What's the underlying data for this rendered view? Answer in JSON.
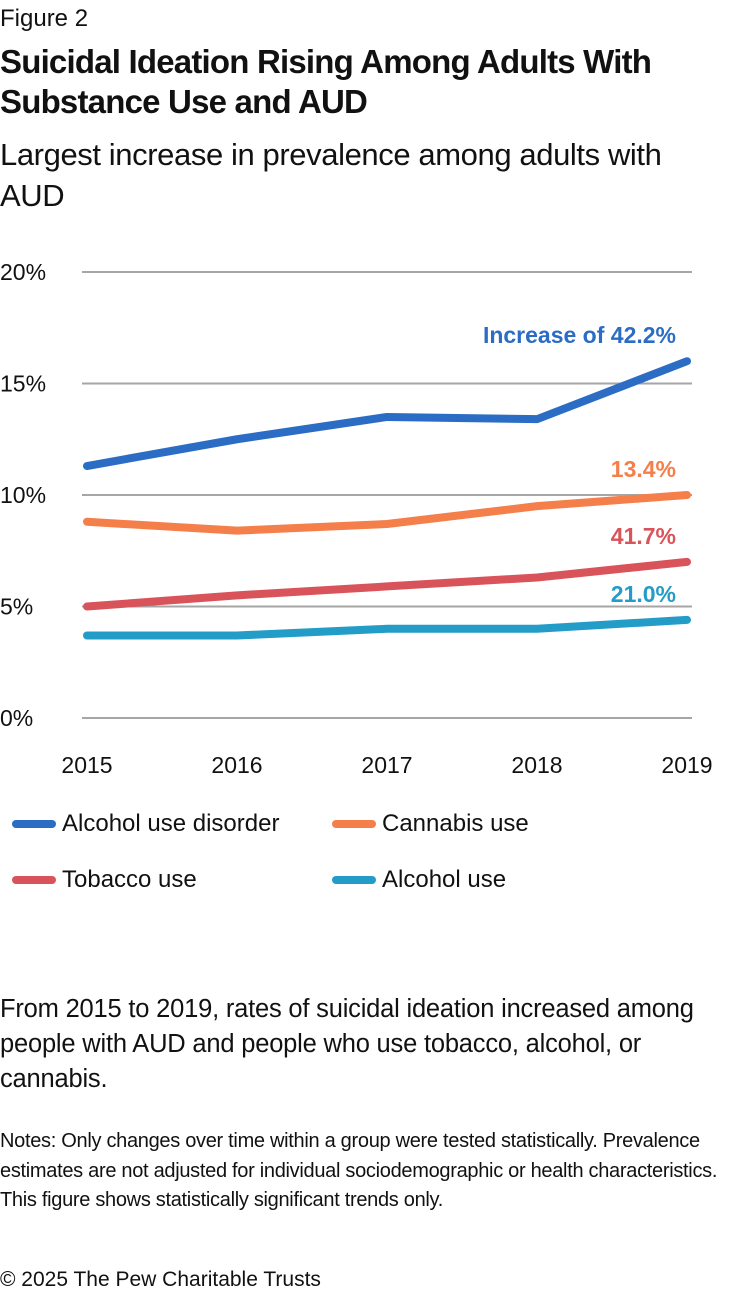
{
  "header": {
    "figure_label": "Figure 2",
    "title": "Suicidal Ideation Rising Among Adults With Substance Use and AUD",
    "subtitle": "Largest increase in prevalence among adults with AUD"
  },
  "chart_data": {
    "type": "line",
    "title": "Suicidal Ideation Rising Among Adults With Substance Use and AUD",
    "subtitle": "Largest increase in prevalence among adults with AUD",
    "xlabel": "",
    "ylabel": "",
    "x": [
      "2015",
      "2016",
      "2017",
      "2018",
      "2019"
    ],
    "ylim": [
      0,
      20
    ],
    "yticks": [
      0,
      5,
      10,
      15,
      20
    ],
    "ytick_labels": [
      "0%",
      "5%",
      "10%",
      "15%",
      "20%"
    ],
    "grid": true,
    "legend_position": "bottom",
    "series": [
      {
        "name": "Alcohol use disorder",
        "color": "#2b6cc4",
        "values": [
          11.3,
          12.5,
          13.5,
          13.4,
          16.0
        ],
        "annotation": "Increase of 42.2%"
      },
      {
        "name": "Cannabis use",
        "color": "#f47f4a",
        "values": [
          8.8,
          8.4,
          8.7,
          9.5,
          10.0
        ],
        "annotation": "13.4%"
      },
      {
        "name": "Tobacco use",
        "color": "#d9545a",
        "values": [
          5.0,
          5.5,
          5.9,
          6.3,
          7.0
        ],
        "annotation": "41.7%"
      },
      {
        "name": "Alcohol use",
        "color": "#249cc8",
        "values": [
          3.7,
          3.7,
          4.0,
          4.0,
          4.4
        ],
        "annotation": "21.0%"
      }
    ]
  },
  "footer": {
    "summary": "From 2015 to 2019, rates of suicidal ideation increased among people with AUD and people who use tobacco, alcohol, or cannabis.",
    "notes": "Notes: Only changes over time within a group were tested statistically. Prevalence estimates are not adjusted for individual sociodemographic or health characteristics. This figure shows statistically significant trends only.",
    "copyright": "© 2025 The Pew Charitable Trusts"
  }
}
